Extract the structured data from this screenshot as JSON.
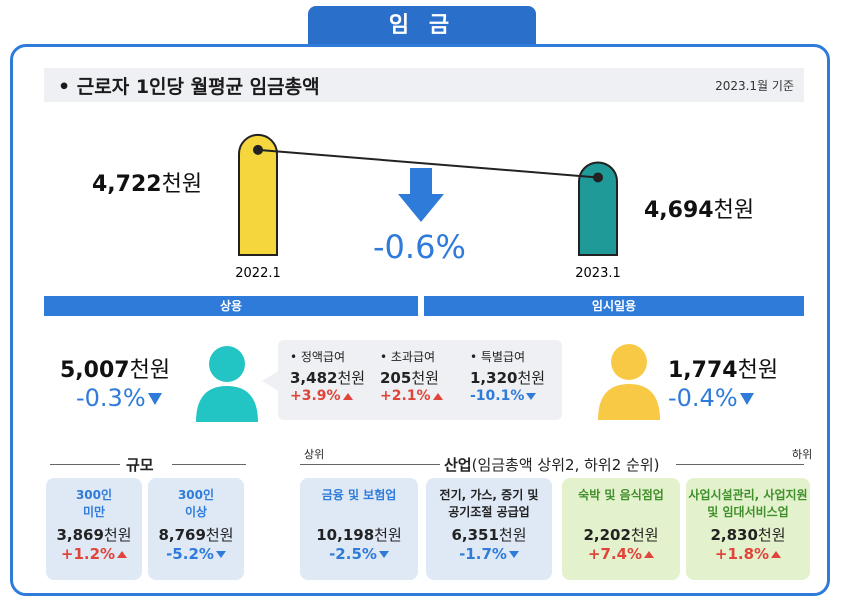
{
  "tab_title": "임 금",
  "header": {
    "title": "근로자 1인당 월평균 임금총액",
    "date_label": "2023.1월 기준"
  },
  "chart_data": {
    "type": "bar",
    "categories": [
      "2022.1",
      "2023.1"
    ],
    "values": [
      4722,
      4694
    ],
    "value_labels": [
      "4,722",
      "4,694"
    ],
    "unit": "천원",
    "change": "-0.6%",
    "colors": [
      "#f5d63d",
      "#1f9a99"
    ]
  },
  "regular": {
    "title": "상용",
    "value": "5,007",
    "unit": "천원",
    "change": "-0.3%",
    "items": [
      {
        "label": "정액급여",
        "value": "3,482",
        "unit": "천원",
        "change": "+3.9%"
      },
      {
        "label": "초과급여",
        "value": "205",
        "unit": "천원",
        "change": "+2.1%"
      },
      {
        "label": "특별급여",
        "value": "1,320",
        "unit": "천원",
        "change": "-10.1%"
      }
    ]
  },
  "temporary": {
    "title": "임시일용",
    "value": "1,774",
    "unit": "천원",
    "change": "-0.4%"
  },
  "size": {
    "title": "규모",
    "items": [
      {
        "label1": "300인",
        "label2": "미만",
        "value": "3,869",
        "unit": "천원",
        "change": "+1.2%"
      },
      {
        "label1": "300인",
        "label2": "이상",
        "value": "8,769",
        "unit": "천원",
        "change": "-5.2%"
      }
    ]
  },
  "industry": {
    "title": "산업",
    "subtitle": "(임금총액 상위2, 하위2 순위)",
    "top_label": "상위",
    "bottom_label": "하위",
    "items": [
      {
        "label1": "금융 및 보험업",
        "label2": "",
        "value": "10,198",
        "unit": "천원",
        "change": "-2.5%"
      },
      {
        "label1": "전기, 가스, 증기 및",
        "label2": "공기조절 공급업",
        "value": "6,351",
        "unit": "천원",
        "change": "-1.7%"
      },
      {
        "label1": "숙박 및 음식점업",
        "label2": "",
        "value": "2,202",
        "unit": "천원",
        "change": "+7.4%"
      },
      {
        "label1": "사업시설관리, 사업지원",
        "label2": "및 임대서비스업",
        "value": "2,830",
        "unit": "천원",
        "change": "+1.8%"
      }
    ]
  }
}
